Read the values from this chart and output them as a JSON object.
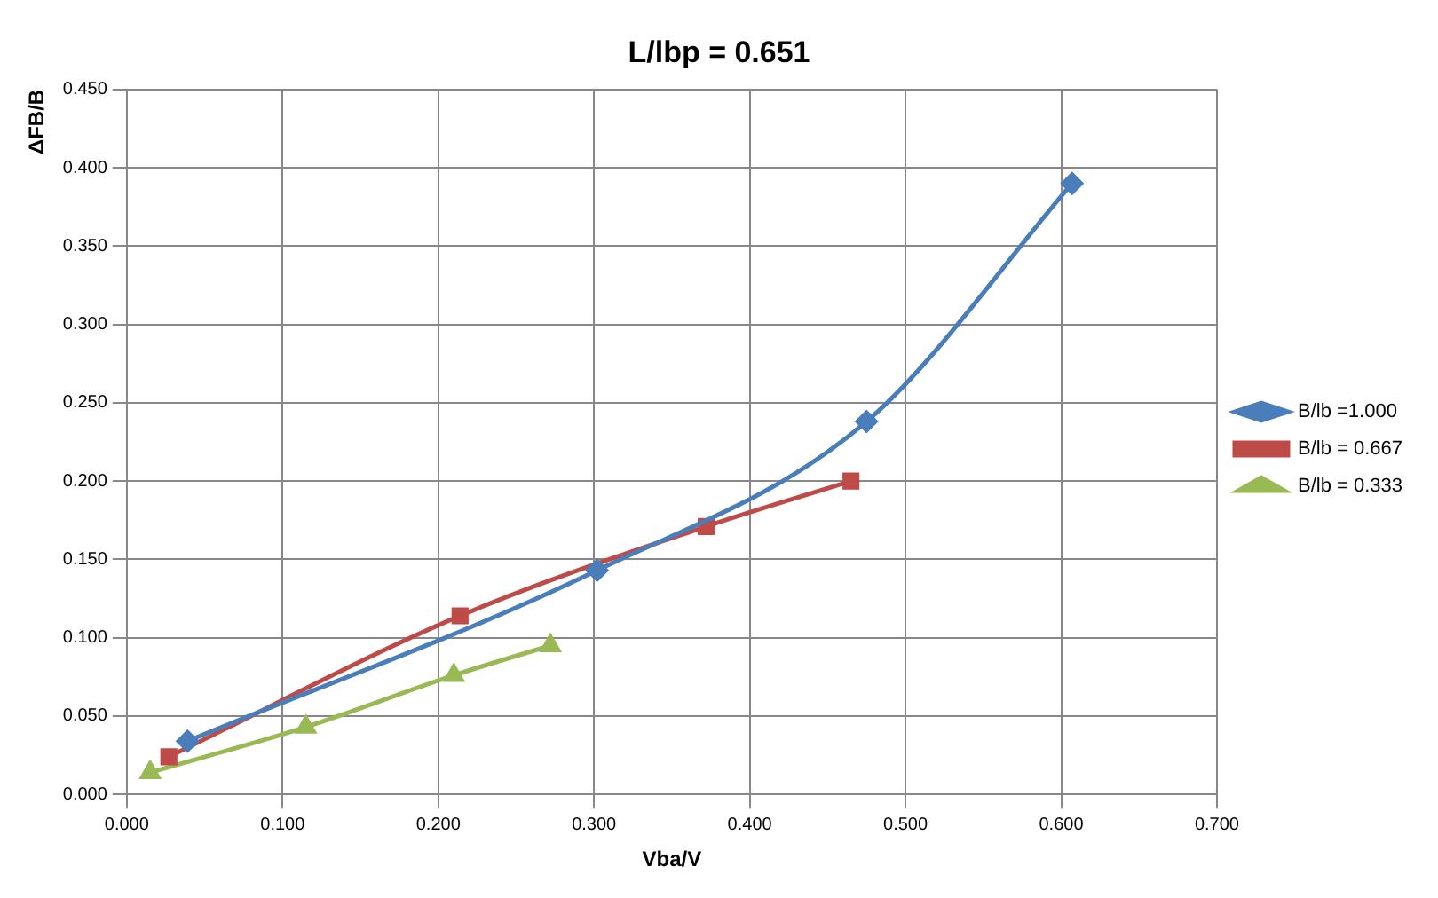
{
  "chart_data": {
    "type": "line",
    "title": "L/lbp = 0.651",
    "xlabel": "Vba/V",
    "ylabel": "ΔFB/B",
    "xlim": [
      0,
      0.7
    ],
    "xticks": [
      {
        "value": 0,
        "label": "0.000"
      },
      {
        "value": 0.1,
        "label": "0.100"
      },
      {
        "value": 0.2,
        "label": "0.200"
      },
      {
        "value": 0.3,
        "label": "0.300"
      },
      {
        "value": 0.4,
        "label": "0.400"
      },
      {
        "value": 0.5,
        "label": "0.500"
      },
      {
        "value": 0.6,
        "label": "0.600"
      },
      {
        "value": 0.7,
        "label": "0.700"
      }
    ],
    "ylim": [
      0,
      0.45
    ],
    "yticks": [
      {
        "value": 0,
        "label": "0.000"
      },
      {
        "value": 0.05,
        "label": "0.050"
      },
      {
        "value": 0.1,
        "label": "0.100"
      },
      {
        "value": 0.15,
        "label": "0.150"
      },
      {
        "value": 0.2,
        "label": "0.200"
      },
      {
        "value": 0.25,
        "label": "0.250"
      },
      {
        "value": 0.3,
        "label": "0.300"
      },
      {
        "value": 0.35,
        "label": "0.350"
      },
      {
        "value": 0.4,
        "label": "0.400"
      },
      {
        "value": 0.45,
        "label": "0.450"
      }
    ],
    "grid": true,
    "legend": "right",
    "line_style": "solid",
    "series": [
      {
        "name": "B/lb =1.000",
        "color": "#4a7ebb",
        "marker": "diamond",
        "x": [
          0.039,
          0.302,
          0.475,
          0.607
        ],
        "values": [
          0.034,
          0.143,
          0.238,
          0.39
        ]
      },
      {
        "name": "B/lb = 0.667",
        "color": "#be4b48",
        "marker": "square",
        "x": [
          0.027,
          0.214,
          0.372,
          0.465
        ],
        "values": [
          0.024,
          0.114,
          0.171,
          0.2
        ]
      },
      {
        "name": "B/lb = 0.333",
        "color": "#98b954",
        "marker": "triangle",
        "x": [
          0.015,
          0.115,
          0.21,
          0.272
        ],
        "values": [
          0.014,
          0.043,
          0.076,
          0.095
        ]
      }
    ]
  }
}
